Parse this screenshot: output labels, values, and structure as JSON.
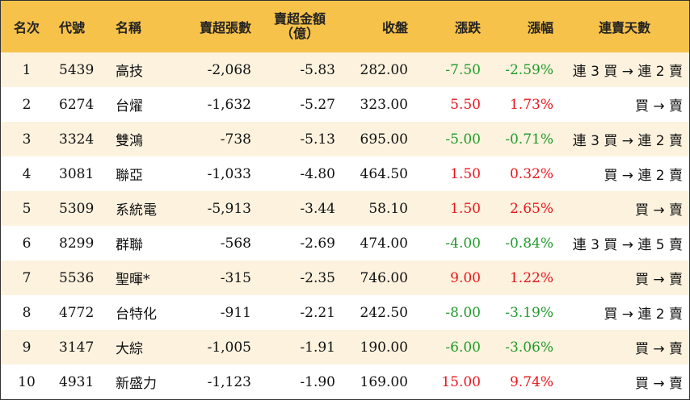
{
  "headers": {
    "rank": "名次",
    "code": "代號",
    "name": "名稱",
    "net_shares": "賣超張數",
    "net_amount_line1": "賣超金額",
    "net_amount_line2": "（億）",
    "close": "收盤",
    "change": "漲跌",
    "pct": "漲幅",
    "streak": "連賣天數"
  },
  "rows": [
    {
      "rank": "1",
      "code": "5439",
      "name": "高技",
      "net_shares": "-2,068",
      "net_amount": "-5.83",
      "close": "282.00",
      "change": "-7.50",
      "pct": "-2.59%",
      "streak": "連 3 買 → 連 2 賣",
      "dir": "down"
    },
    {
      "rank": "2",
      "code": "6274",
      "name": "台燿",
      "net_shares": "-1,632",
      "net_amount": "-5.27",
      "close": "323.00",
      "change": "5.50",
      "pct": "1.73%",
      "streak": "買 → 賣",
      "dir": "up"
    },
    {
      "rank": "3",
      "code": "3324",
      "name": "雙鴻",
      "net_shares": "-738",
      "net_amount": "-5.13",
      "close": "695.00",
      "change": "-5.00",
      "pct": "-0.71%",
      "streak": "連 3 買 → 連 2 賣",
      "dir": "down"
    },
    {
      "rank": "4",
      "code": "3081",
      "name": "聯亞",
      "net_shares": "-1,033",
      "net_amount": "-4.80",
      "close": "464.50",
      "change": "1.50",
      "pct": "0.32%",
      "streak": "買 → 連 2 賣",
      "dir": "up"
    },
    {
      "rank": "5",
      "code": "5309",
      "name": "系統電",
      "net_shares": "-5,913",
      "net_amount": "-3.44",
      "close": "58.10",
      "change": "1.50",
      "pct": "2.65%",
      "streak": "買 → 賣",
      "dir": "up"
    },
    {
      "rank": "6",
      "code": "8299",
      "name": "群聯",
      "net_shares": "-568",
      "net_amount": "-2.69",
      "close": "474.00",
      "change": "-4.00",
      "pct": "-0.84%",
      "streak": "連 3 買 → 連 5 賣",
      "dir": "down"
    },
    {
      "rank": "7",
      "code": "5536",
      "name": "聖暉*",
      "net_shares": "-315",
      "net_amount": "-2.35",
      "close": "746.00",
      "change": "9.00",
      "pct": "1.22%",
      "streak": "買 → 賣",
      "dir": "up"
    },
    {
      "rank": "8",
      "code": "4772",
      "name": "台特化",
      "net_shares": "-911",
      "net_amount": "-2.21",
      "close": "242.50",
      "change": "-8.00",
      "pct": "-3.19%",
      "streak": "買 → 連 2 賣",
      "dir": "down"
    },
    {
      "rank": "9",
      "code": "3147",
      "name": "大綜",
      "net_shares": "-1,005",
      "net_amount": "-1.91",
      "close": "190.00",
      "change": "-6.00",
      "pct": "-3.06%",
      "streak": "買 → 賣",
      "dir": "down"
    },
    {
      "rank": "10",
      "code": "4931",
      "name": "新盛力",
      "net_shares": "-1,123",
      "net_amount": "-1.90",
      "close": "169.00",
      "change": "15.00",
      "pct": "9.74%",
      "streak": "買 → 賣",
      "dir": "up"
    }
  ],
  "colors": {
    "header_bg": "#f7c24a",
    "odd_row_bg": "#fcf2de",
    "even_row_bg": "#ffffff",
    "up": "#e8141b",
    "down": "#1e9a2a",
    "border": "#333333"
  }
}
